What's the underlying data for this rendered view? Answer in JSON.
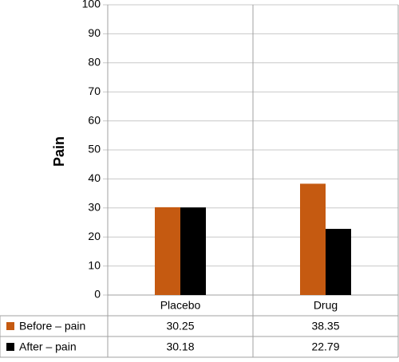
{
  "chart_data": {
    "type": "bar",
    "y_label": "Pain",
    "categories": [
      "Placebo",
      "Drug"
    ],
    "series": [
      {
        "name": "Before – pain",
        "color": "#c55a11",
        "values": [
          30.25,
          38.35
        ]
      },
      {
        "name": "After – pain",
        "color": "#000000",
        "values": [
          30.18,
          22.79
        ]
      }
    ],
    "ylim": [
      0,
      100
    ],
    "yticks": [
      0,
      10,
      20,
      30,
      40,
      50,
      60,
      70,
      80,
      90,
      100
    ],
    "grid": true
  }
}
